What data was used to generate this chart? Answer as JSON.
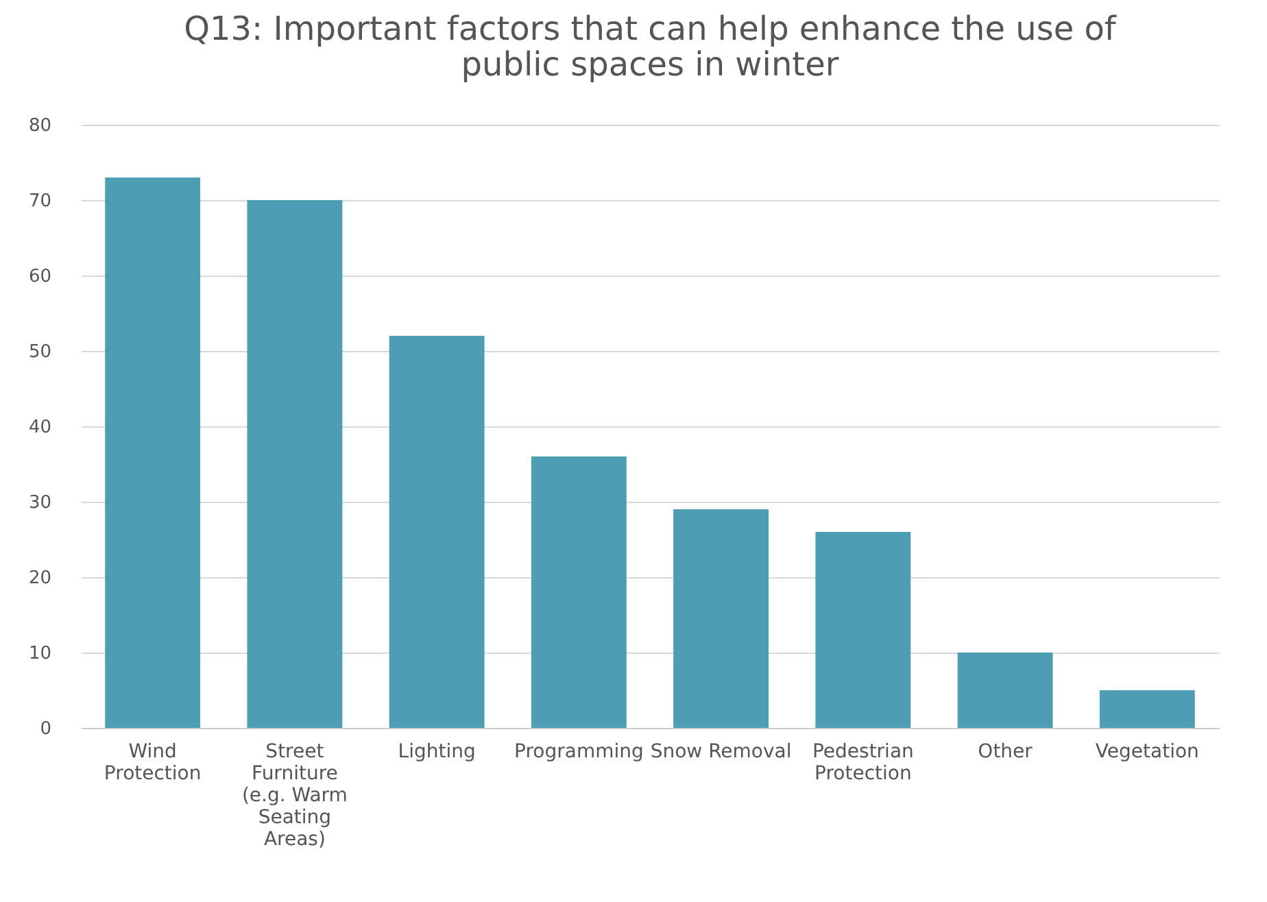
{
  "chart_data": {
    "type": "bar",
    "title": "Q13: Important factors that can help enhance the use of public spaces in winter",
    "categories": [
      "Wind Protection",
      "Street Furniture (e.g. Warm Seating Areas)",
      "Lighting",
      "Programming",
      "Snow Removal",
      "Pedestrian Protection",
      "Other",
      "Vegetation"
    ],
    "values": [
      73,
      70,
      52,
      36,
      29,
      26,
      10,
      5
    ],
    "color": "#4d9db5",
    "ylim": [
      0,
      80
    ],
    "yticks": [
      0,
      10,
      20,
      30,
      40,
      50,
      60,
      70,
      80
    ],
    "grid": "y"
  }
}
